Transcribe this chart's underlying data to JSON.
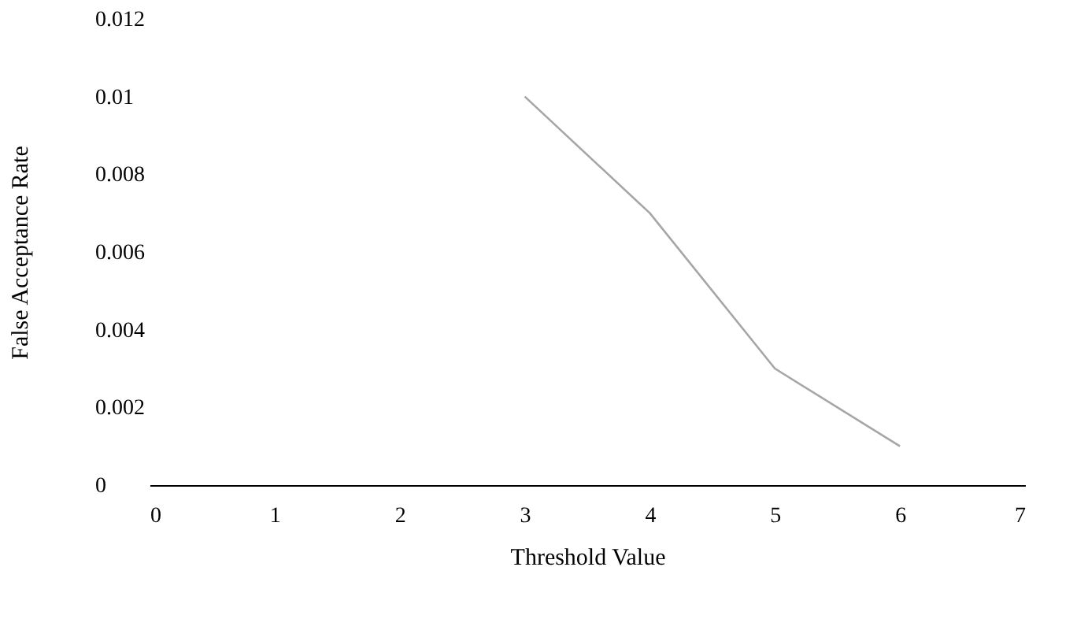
{
  "chart_data": {
    "type": "line",
    "xlabel": "Threshold Value",
    "ylabel": "False Acceptance Rate",
    "x": [
      3,
      4,
      5,
      6
    ],
    "series": [
      {
        "color": "#a6a6a6",
        "values": [
          0.01,
          0.007,
          0.003,
          0.001
        ]
      }
    ],
    "xlim": [
      0,
      7
    ],
    "xticks": [
      0,
      1,
      2,
      3,
      4,
      5,
      6,
      7
    ],
    "ylim": [
      0,
      0.012
    ],
    "yticks": [
      0,
      0.002,
      0.004,
      0.006,
      0.008,
      0.01,
      0.012
    ],
    "grid": false,
    "marker": "none",
    "line_style": "solid"
  }
}
